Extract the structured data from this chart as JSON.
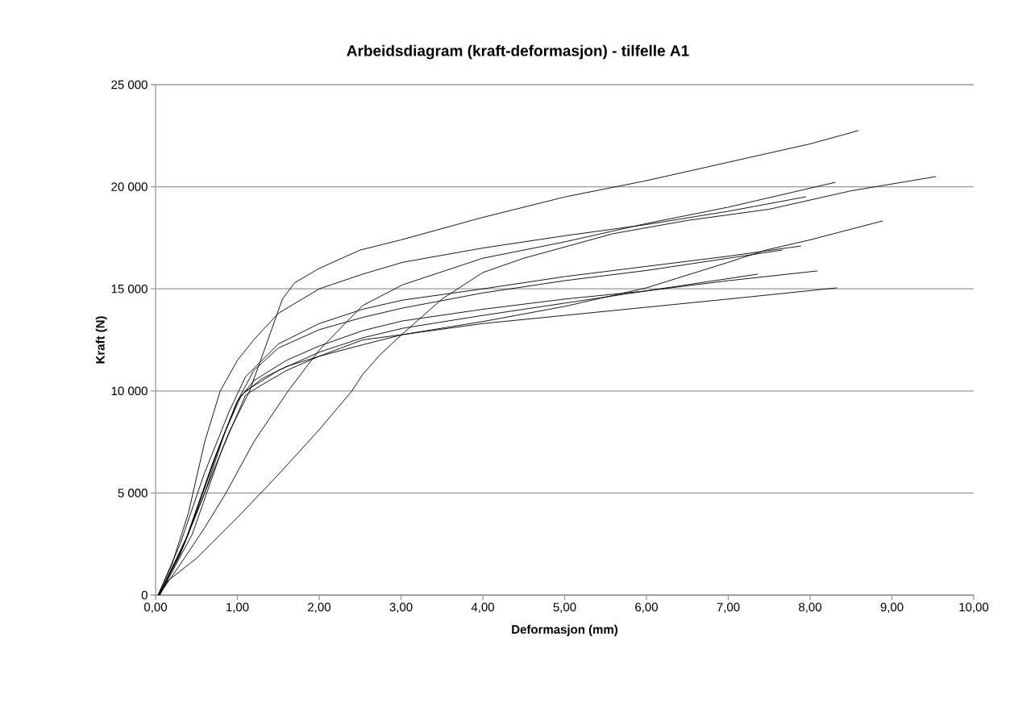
{
  "chart_data": {
    "type": "line",
    "title": "Arbeidsdiagram (kraft-deformasjon) - tilfelle A1",
    "xlabel": "Deformasjon (mm)",
    "ylabel": "Kraft (N)",
    "xlim": [
      0,
      10
    ],
    "ylim": [
      0,
      25000
    ],
    "grid": "y",
    "xticks": [
      {
        "value": 0,
        "label": "0,00"
      },
      {
        "value": 1,
        "label": "1,00"
      },
      {
        "value": 2,
        "label": "2,00"
      },
      {
        "value": 3,
        "label": "3,00"
      },
      {
        "value": 4,
        "label": "4,00"
      },
      {
        "value": 5,
        "label": "5,00"
      },
      {
        "value": 6,
        "label": "6,00"
      },
      {
        "value": 7,
        "label": "7,00"
      },
      {
        "value": 8,
        "label": "8,00"
      },
      {
        "value": 9,
        "label": "9,00"
      },
      {
        "value": 10,
        "label": "10,00"
      }
    ],
    "yticks": [
      0,
      {
        "value": 5000,
        "label": "5 000"
      },
      {
        "value": 10000,
        "label": "10 000"
      },
      {
        "value": 15000,
        "label": "15 000"
      },
      {
        "value": 20000,
        "label": "20 000"
      },
      {
        "value": 25000,
        "label": "25 000"
      }
    ],
    "series": [
      {
        "color": "#000000",
        "x": [
          0.04,
          0.3,
          0.6,
          0.9,
          1.15,
          1.4,
          1.55,
          1.7,
          2.0,
          2.5,
          3.0,
          4,
          5,
          6,
          7,
          8,
          8.59
        ],
        "values": [
          0,
          2000,
          5000,
          8000,
          10000,
          12800,
          14500,
          15300,
          16000,
          16900,
          17400,
          18500,
          19500,
          20300,
          21200,
          22100,
          22750
        ]
      },
      {
        "color": "#000000",
        "x": [
          0.03,
          0.2,
          0.4,
          0.6,
          0.79,
          1.0,
          1.2,
          1.5,
          2.0,
          2.53,
          3.02,
          4,
          5,
          6,
          7,
          7.95
        ],
        "values": [
          0,
          1500,
          4000,
          7500,
          10000,
          11500,
          12500,
          13800,
          15000,
          15720,
          16300,
          17000,
          17600,
          18150,
          18800,
          19510
        ]
      },
      {
        "color": "#000000",
        "x": [
          0.04,
          0.3,
          0.6,
          0.86,
          1.2,
          1.62,
          2.0,
          2.53,
          3.02,
          4,
          5,
          6,
          7,
          8.31
        ],
        "values": [
          0,
          1500,
          3300,
          5000,
          7500,
          10000,
          12000,
          14180,
          15200,
          16500,
          17300,
          18200,
          19000,
          20220
        ]
      },
      {
        "color": "#000000",
        "x": [
          0.05,
          0.15,
          0.5,
          1.0,
          1.5,
          2.0,
          2.4,
          2.53,
          2.75,
          3.02,
          3.5,
          4.0,
          4.5,
          5.59,
          6.5,
          7.5,
          8.5,
          9.54
        ],
        "values": [
          0,
          700,
          1800,
          3800,
          5900,
          8100,
          10000,
          10800,
          11800,
          12800,
          14500,
          15800,
          16500,
          17700,
          18350,
          18900,
          19800,
          20500
        ]
      },
      {
        "color": "#000000",
        "x": [
          0.04,
          0.3,
          0.6,
          0.85,
          1.05,
          1.3,
          1.6,
          2.0,
          2.53,
          3.02,
          4,
          5,
          6,
          7,
          7.46,
          8.0,
          8.89
        ],
        "values": [
          0,
          2000,
          5000,
          8000,
          9800,
          10600,
          11200,
          11700,
          12260,
          12760,
          13400,
          14140,
          15050,
          16300,
          16900,
          17400,
          18330
        ]
      },
      {
        "color": "#000000",
        "x": [
          0.03,
          0.3,
          0.6,
          0.9,
          1.1,
          1.5,
          2.0,
          2.53,
          3.02,
          4,
          5,
          6,
          7,
          7.89
        ],
        "values": [
          0,
          2500,
          6000,
          9000,
          10700,
          12300,
          13300,
          14000,
          14450,
          15000,
          15600,
          16100,
          16600,
          17100
        ]
      },
      {
        "color": "#000000",
        "x": [
          0.04,
          0.35,
          0.7,
          1.0,
          1.2,
          1.5,
          2.0,
          2.53,
          3.02,
          4,
          5,
          6,
          7,
          7.66
        ],
        "values": [
          0,
          2500,
          6500,
          9500,
          11000,
          12100,
          13000,
          13600,
          14060,
          14800,
          15400,
          15900,
          16500,
          16900
        ]
      },
      {
        "color": "#000000",
        "x": [
          0.04,
          0.4,
          0.75,
          1.0,
          1.2,
          1.6,
          2.0,
          2.53,
          3.02,
          4,
          5,
          6,
          7,
          8.09
        ],
        "values": [
          0,
          3000,
          7000,
          9500,
          10500,
          11500,
          12200,
          12950,
          13430,
          14000,
          14500,
          14900,
          15400,
          15880
        ]
      },
      {
        "color": "#000000",
        "x": [
          0.05,
          0.4,
          0.8,
          1.0,
          1.1,
          1.5,
          2.0,
          2.53,
          3.02,
          4,
          5,
          6,
          7.36
        ],
        "values": [
          0,
          3000,
          7500,
          9500,
          10000,
          11000,
          11900,
          12600,
          13070,
          13700,
          14300,
          14900,
          15720
        ]
      },
      {
        "color": "#000000",
        "x": [
          0.05,
          0.45,
          0.8,
          1.1,
          1.3,
          1.6,
          2.0,
          2.53,
          3.02,
          4,
          5,
          6,
          7,
          8.33
        ],
        "values": [
          0,
          3000,
          7000,
          9800,
          10300,
          11000,
          11700,
          12500,
          12760,
          13300,
          13700,
          14100,
          14500,
          15050
        ]
      }
    ]
  }
}
